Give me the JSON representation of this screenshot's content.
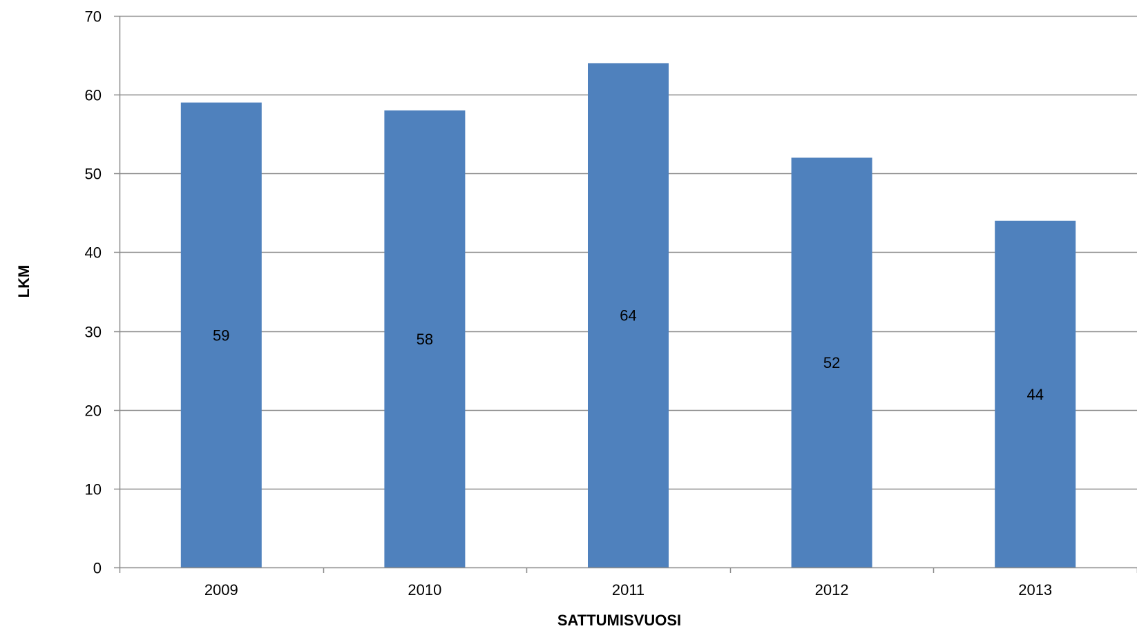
{
  "chart_data": {
    "type": "bar",
    "categories": [
      "2009",
      "2010",
      "2011",
      "2012",
      "2013"
    ],
    "values": [
      59,
      58,
      64,
      52,
      44
    ],
    "data_labels": [
      "59",
      "58",
      "64",
      "52",
      "44"
    ],
    "title": "",
    "xlabel": "SATTUMISVUOSI",
    "ylabel": "LKM",
    "ylim": [
      0,
      70
    ],
    "y_ticks": [
      0,
      10,
      20,
      30,
      40,
      50,
      60,
      70
    ],
    "y_tick_labels": [
      "0",
      "10",
      "20",
      "30",
      "40",
      "50",
      "60",
      "70"
    ],
    "grid": true,
    "legend": "none",
    "colors": {
      "bar": "#4f81bd",
      "gridline": "#8c8c8c",
      "axis": "#8c8c8c",
      "text": "#000000",
      "background": "#ffffff"
    }
  }
}
